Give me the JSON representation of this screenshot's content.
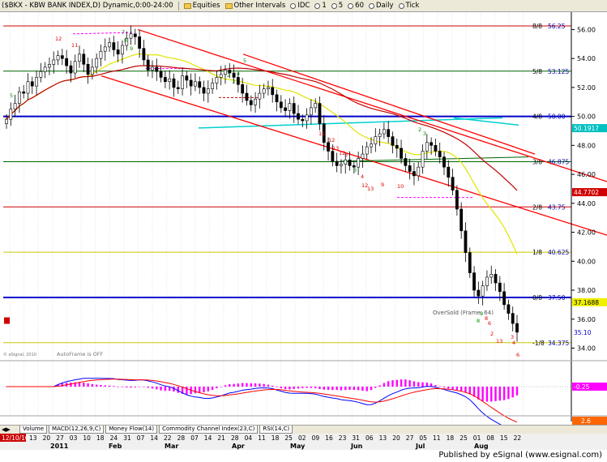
{
  "toolbar": {
    "symbol": "($BKX - KBW BANK INDEX,D) Dynamic,0:00-24:00",
    "equities": "Equities",
    "other_intervals": "Other Intervals",
    "source": "IDC",
    "intervals": [
      "1",
      "5",
      "60",
      "Daily",
      "Tick"
    ]
  },
  "chart_data": {
    "type": "candlestick",
    "title": "",
    "y_ticks": [
      34,
      36,
      38,
      40,
      42,
      44,
      46,
      48,
      50,
      52,
      54,
      56
    ],
    "ylim": [
      33.3,
      57.2
    ],
    "x_date_labels": [
      "13",
      "20",
      "27",
      "03",
      "10",
      "18",
      "24",
      "Feb",
      "07",
      "14",
      "22",
      "28",
      "Mar",
      "14",
      "21",
      "28",
      "Apr",
      "11",
      "18",
      "25",
      "02",
      "May",
      "16",
      "23",
      "31",
      "Jun",
      "13",
      "20",
      "27",
      "05",
      "Jul",
      "18",
      "25",
      "01",
      "Aug",
      "15",
      "22"
    ],
    "x_year_label": "2011",
    "x_month_labels": [
      "Feb",
      "Mar",
      "Apr",
      "May",
      "Jun",
      "Jul",
      "Aug"
    ],
    "murrey_lines": [
      {
        "label": "8/8",
        "value": "56.25",
        "color": "#cc0000"
      },
      {
        "label": "5/8",
        "value": "53.125",
        "color": "#006400"
      },
      {
        "label": "4/8",
        "value": "50.00",
        "color": "#0000cc"
      },
      {
        "label": "3/8",
        "value": "46.875",
        "color": "#006400"
      },
      {
        "label": "2/8",
        "value": "43.75",
        "color": "#cc0000"
      },
      {
        "label": "1/8",
        "value": "40.625",
        "color": "#c8c800"
      },
      {
        "label": "0/8",
        "value": "37.50",
        "color": "#0000cc"
      },
      {
        "label": "-1/8",
        "value": "34.375",
        "color": "#c8c800"
      }
    ],
    "last_price_label": "35.10",
    "ma_label_red": "44.7702",
    "ma_label_yellow": "37.1688",
    "ma_label_blue": "50.1917",
    "annotations": {
      "oversold": "OverSold (Frame: 64)",
      "autoframe": "AutoFrame is OFF",
      "copyright": "© eSignal, 2010",
      "red_counts": [
        "12",
        "11",
        "12",
        "13",
        "9",
        "10",
        "11",
        "12",
        "13",
        "12",
        "3",
        "4",
        "6",
        "8",
        "13",
        "2",
        "3",
        "4",
        "6"
      ],
      "green_counts": [
        "5",
        "7",
        "8",
        "9",
        "2",
        "3",
        "4",
        "5",
        "3",
        "2",
        "3",
        "8",
        "9"
      ]
    },
    "macd_value": "-0.25",
    "rsi_value": "2.6",
    "trend_channel": "descending red channel from Feb high"
  },
  "tabs": [
    "Volume",
    "MACD(12,26,9,C)",
    "Money Flow(14)",
    "Commodity Channel Index(23,C)",
    "RSI(14,C)"
  ],
  "datebar": {
    "first_date": "12/10/10",
    "day_labels": [
      "13",
      "20",
      "27",
      "03",
      "10",
      "18",
      "24",
      "31",
      "07",
      "14",
      "22",
      "28",
      "07",
      "14",
      "21",
      "28",
      "04",
      "11",
      "18",
      "25",
      "02",
      "09",
      "16",
      "23",
      "31",
      "06",
      "13",
      "20",
      "27",
      "05",
      "11",
      "18",
      "25",
      "01",
      "08",
      "15",
      "22"
    ],
    "year": "2011",
    "months": [
      "Feb",
      "Mar",
      "Apr",
      "May",
      "Jun",
      "Jul",
      "Aug"
    ]
  },
  "footer": {
    "published": "Published by eSignal (www.esignal.com)"
  }
}
